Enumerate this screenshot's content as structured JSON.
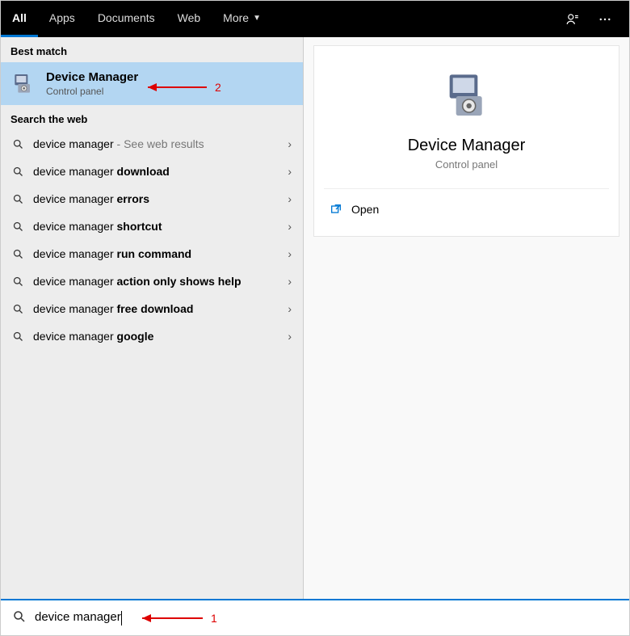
{
  "colors": {
    "accent": "#0078d4",
    "topbar_bg": "#000000",
    "best_match_bg": "#b3d6f2",
    "annot": "#d00000"
  },
  "topbar": {
    "tabs": [
      {
        "label": "All",
        "active": true
      },
      {
        "label": "Apps",
        "active": false
      },
      {
        "label": "Documents",
        "active": false
      },
      {
        "label": "Web",
        "active": false
      },
      {
        "label": "More",
        "active": false,
        "dropdown": true
      }
    ]
  },
  "left": {
    "best_match_header": "Best match",
    "best_match": {
      "title": "Device Manager",
      "subtitle": "Control panel"
    },
    "web_header": "Search the web",
    "web_results": [
      {
        "prefix": "device manager",
        "bold": "",
        "hint": " - See web results"
      },
      {
        "prefix": "device manager ",
        "bold": "download",
        "hint": ""
      },
      {
        "prefix": "device manager ",
        "bold": "errors",
        "hint": ""
      },
      {
        "prefix": "device manager ",
        "bold": "shortcut",
        "hint": ""
      },
      {
        "prefix": "device manager ",
        "bold": "run command",
        "hint": ""
      },
      {
        "prefix": "device manager ",
        "bold": "action only shows help",
        "hint": ""
      },
      {
        "prefix": "device manager ",
        "bold": "free download",
        "hint": ""
      },
      {
        "prefix": "device manager ",
        "bold": "google",
        "hint": ""
      }
    ]
  },
  "right": {
    "title": "Device Manager",
    "subtitle": "Control panel",
    "actions": [
      {
        "label": "Open",
        "icon": "open"
      }
    ]
  },
  "search": {
    "value": "device manager"
  },
  "annotations": [
    {
      "num": "1",
      "target": "searchbar"
    },
    {
      "num": "2",
      "target": "best-match"
    }
  ]
}
